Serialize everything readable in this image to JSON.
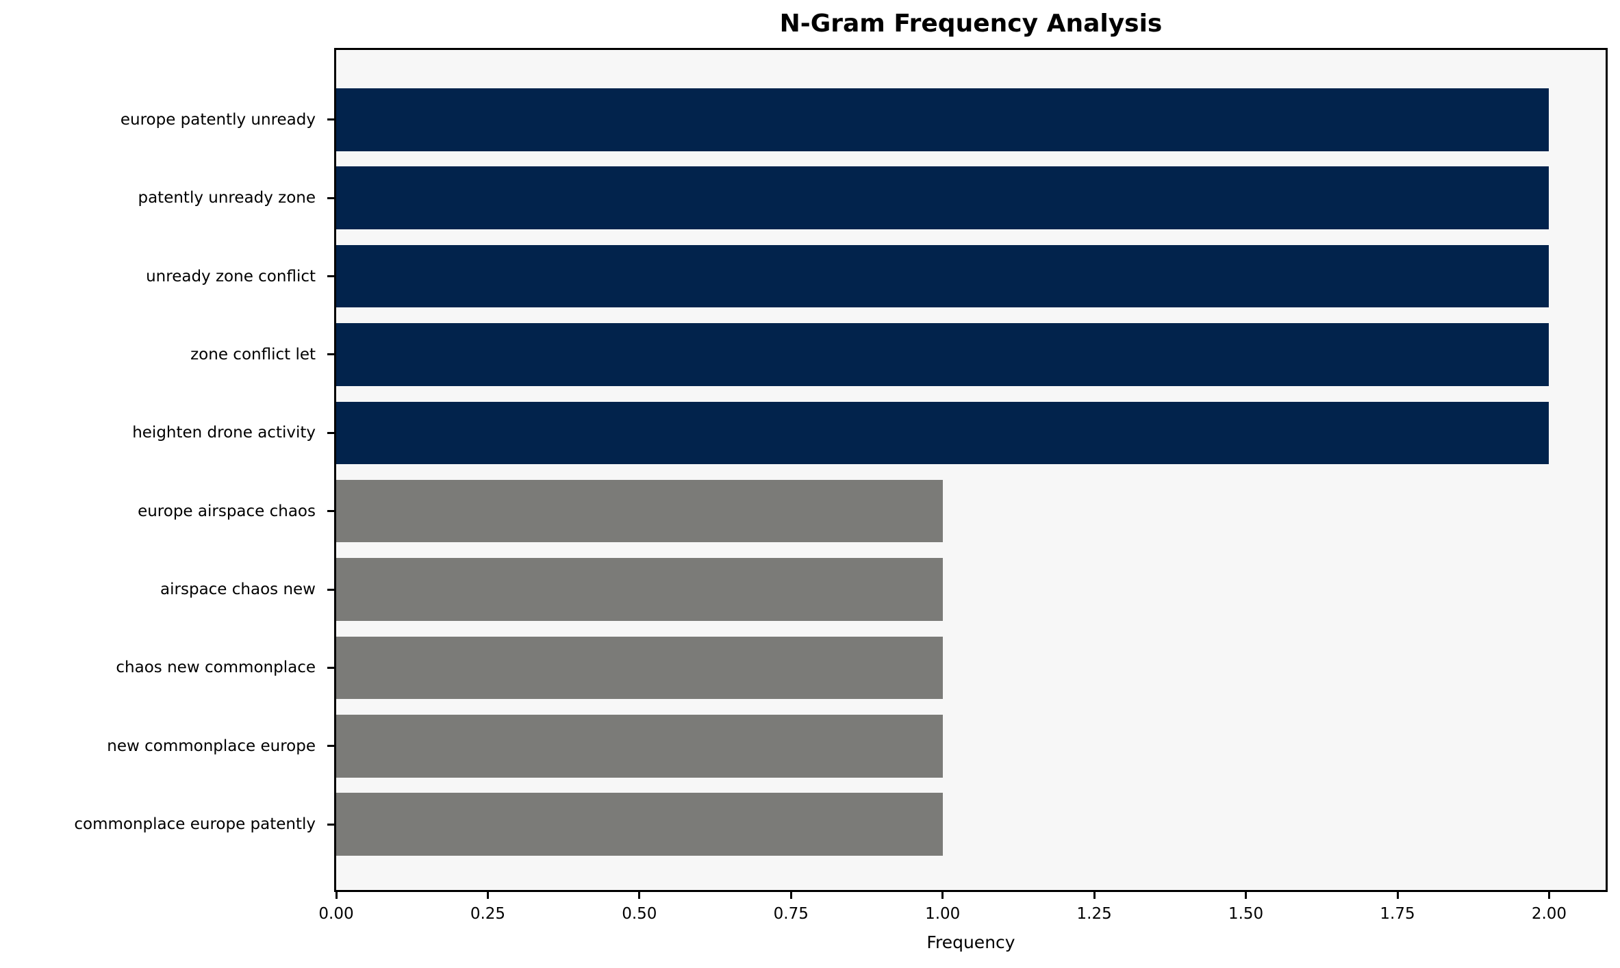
{
  "title": "N-Gram Frequency Analysis",
  "chart_data": {
    "type": "bar",
    "orientation": "horizontal",
    "title": "N-Gram Frequency Analysis",
    "xlabel": "Frequency",
    "ylabel": "",
    "categories": [
      "europe patently unready",
      "patently unready zone",
      "unready zone conflict",
      "zone conflict let",
      "heighten drone activity",
      "europe airspace chaos",
      "airspace chaos new",
      "chaos new commonplace",
      "new commonplace europe",
      "commonplace europe patently"
    ],
    "values": [
      2,
      2,
      2,
      2,
      2,
      1,
      1,
      1,
      1,
      1
    ],
    "bar_colors": [
      "#02234c",
      "#02234c",
      "#02234c",
      "#02234c",
      "#02234c",
      "#7b7b78",
      "#7b7b78",
      "#7b7b78",
      "#7b7b78",
      "#7b7b78"
    ],
    "xlim": [
      0,
      2.1
    ],
    "xticks": [
      0,
      0.25,
      0.5,
      0.75,
      1.0,
      1.25,
      1.5,
      1.75,
      2.0
    ],
    "xtick_labels": [
      "0.00",
      "0.25",
      "0.50",
      "0.75",
      "1.00",
      "1.25",
      "1.50",
      "1.75",
      "2.00"
    ],
    "grid": "off",
    "legend": "none",
    "colors": {
      "high_freq_bar": "#02234c",
      "low_freq_bar": "#7b7b78",
      "plot_background": "#f7f7f7",
      "spine": "#000000",
      "text": "#000000"
    }
  }
}
